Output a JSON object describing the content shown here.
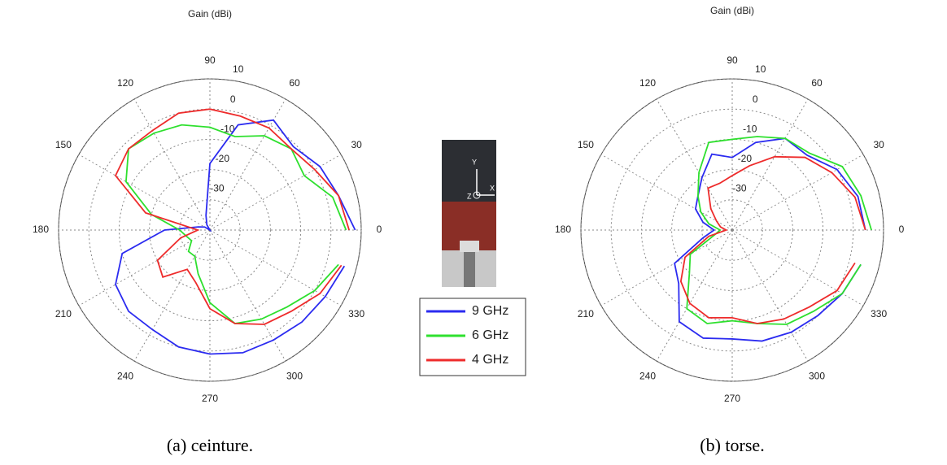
{
  "chart_data": [
    {
      "type": "polar",
      "title": "Gain (dBi)",
      "caption": "(a) ceinture.",
      "theta": [
        0,
        15,
        30,
        45,
        60,
        75,
        90,
        105,
        120,
        135,
        150,
        165,
        180,
        195,
        210,
        225,
        240,
        255,
        270,
        285,
        300,
        315,
        330,
        345
      ],
      "rlim": [
        -40,
        10
      ],
      "rticks": [
        -30,
        -20,
        -10,
        0,
        10
      ],
      "thetaticks": [
        0,
        30,
        60,
        90,
        120,
        150,
        180,
        210,
        240,
        270,
        300,
        330
      ],
      "grid": true,
      "series": [
        {
          "name": "9 GHz",
          "color": "#2b2bf0",
          "values": [
            8,
            4,
            2,
            -1,
            2,
            -4,
            -18,
            -35,
            -38,
            -40,
            -38,
            -36,
            -25,
            -10,
            -4,
            -2,
            -2,
            0,
            1,
            2,
            2,
            3,
            4,
            6
          ]
        },
        {
          "name": "6 GHz",
          "color": "#2ee02e",
          "values": [
            5,
            2,
            -4,
            -2,
            -4,
            -8,
            -6,
            -4,
            -3,
            -2,
            -8,
            -20,
            -30,
            -32,
            -33,
            -30,
            -30,
            -25,
            -16,
            -8,
            -6,
            -4,
            0,
            4
          ]
        },
        {
          "name": "4 GHz",
          "color": "#ee2b2b",
          "values": [
            6,
            4,
            0,
            -2,
            -1,
            -1,
            0,
            0,
            -2,
            -2,
            -4,
            -18,
            -36,
            -30,
            -20,
            -18,
            -25,
            -22,
            -14,
            -8,
            -4,
            -2,
            2,
            5
          ]
        }
      ]
    },
    {
      "type": "polar",
      "title": "Gain (dBi)",
      "caption": "(b) torse.",
      "theta": [
        0,
        15,
        30,
        45,
        60,
        75,
        90,
        105,
        120,
        135,
        150,
        165,
        180,
        195,
        210,
        225,
        240,
        255,
        270,
        285,
        300,
        315,
        330,
        345
      ],
      "rlim": [
        -40,
        10
      ],
      "rticks": [
        -30,
        -20,
        -10,
        0,
        10
      ],
      "thetaticks": [
        0,
        30,
        60,
        90,
        120,
        150,
        180,
        210,
        240,
        270,
        300,
        330
      ],
      "grid": true,
      "series": [
        {
          "name": "9 GHz",
          "color": "#2b2bf0",
          "values": [
            4,
            3,
            0,
            -5,
            -5,
            -10,
            -16,
            -14,
            -20,
            -24,
            -26,
            -30,
            -34,
            -30,
            -18,
            -15,
            -5,
            -3,
            -4,
            -2,
            -1,
            0,
            2,
            4
          ]
        },
        {
          "name": "6 GHz",
          "color": "#2ee02e",
          "values": [
            6,
            4,
            2,
            -4,
            -5,
            -8,
            -10,
            -10,
            -18,
            -24,
            -28,
            -32,
            -36,
            -34,
            -24,
            -20,
            -10,
            -8,
            -10,
            -8,
            -4,
            -2,
            2,
            4
          ]
        },
        {
          "name": "4 GHz",
          "color": "#ee2b2b",
          "values": [
            4,
            2,
            -2,
            -6,
            -12,
            -18,
            -22,
            -24,
            -24,
            -30,
            -34,
            -36,
            -38,
            -32,
            -22,
            -16,
            -12,
            -10,
            -11,
            -8,
            -6,
            -4,
            0,
            2
          ]
        }
      ]
    }
  ],
  "inset": {
    "axis_labels": [
      "Y",
      "Z",
      "X"
    ]
  }
}
